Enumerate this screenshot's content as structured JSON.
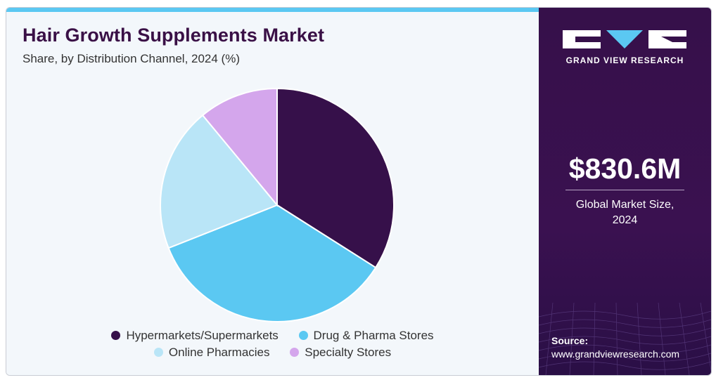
{
  "header": {
    "title": "Hair Growth Supplements Market",
    "subtitle": "Share, by Distribution Channel, 2024 (%)"
  },
  "sidebar": {
    "brand": "GRAND VIEW RESEARCH",
    "market_value": "$830.6M",
    "market_desc_line1": "Global Market Size,",
    "market_desc_line2": "2024",
    "source_label": "Source:",
    "source_url": "www.grandviewresearch.com"
  },
  "colors": {
    "accent_bar": "#5bc8f2",
    "title": "#3a1046",
    "sidebar_bg": "#36104a"
  },
  "chart_data": {
    "type": "pie",
    "title": "Hair Growth Supplements Market",
    "subtitle": "Share, by Distribution Channel, 2024 (%)",
    "start_angle_deg": 0,
    "direction": "clockwise",
    "legend_position": "bottom",
    "slices": [
      {
        "label": "Hypermarkets/Supermarkets",
        "value": 34,
        "color": "#36104a"
      },
      {
        "label": "Drug & Pharma Stores",
        "value": 35,
        "color": "#5bc8f2"
      },
      {
        "label": "Online Pharmacies",
        "value": 20,
        "color": "#b9e5f7"
      },
      {
        "label": "Specialty Stores",
        "value": 11,
        "color": "#d4a6ec"
      }
    ]
  }
}
